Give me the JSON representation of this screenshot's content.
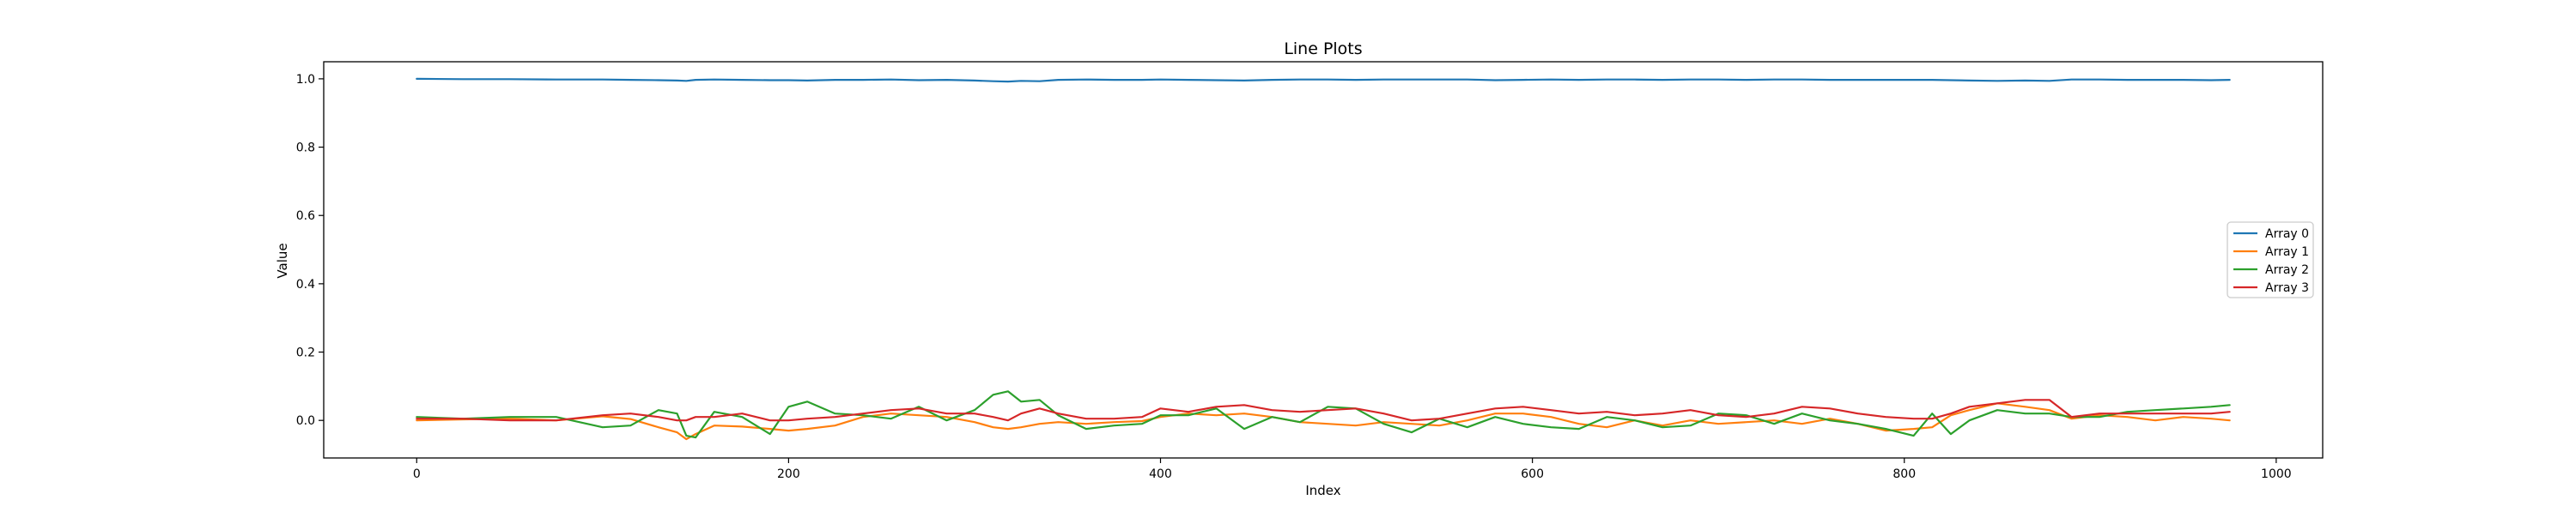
{
  "chart_data": {
    "type": "line",
    "title": "Line Plots",
    "xlabel": "Index",
    "ylabel": "Value",
    "xlim": [
      -50,
      1025
    ],
    "ylim": [
      -0.11,
      1.05
    ],
    "xticks": [
      0,
      200,
      400,
      600,
      800,
      1000
    ],
    "xtick_labels": [
      "0",
      "200",
      "400",
      "600",
      "800",
      "1000"
    ],
    "yticks": [
      0.0,
      0.2,
      0.4,
      0.6,
      0.8,
      1.0
    ],
    "ytick_labels": [
      "0.0",
      "0.2",
      "0.4",
      "0.6",
      "0.8",
      "1.0"
    ],
    "grid": false,
    "legend_position": "center-right",
    "x": [
      0,
      25,
      50,
      75,
      100,
      115,
      130,
      140,
      145,
      150,
      160,
      175,
      190,
      200,
      210,
      225,
      240,
      255,
      270,
      285,
      300,
      310,
      318,
      325,
      335,
      345,
      360,
      375,
      390,
      400,
      415,
      430,
      445,
      460,
      475,
      490,
      505,
      520,
      535,
      550,
      565,
      580,
      595,
      610,
      625,
      640,
      655,
      670,
      685,
      700,
      715,
      730,
      745,
      760,
      775,
      790,
      805,
      815,
      825,
      835,
      850,
      865,
      878,
      890,
      905,
      920,
      935,
      950,
      965,
      975
    ],
    "series": [
      {
        "name": "Array 0",
        "color": "#1f77b4",
        "values": [
          1.0,
          0.999,
          0.999,
          0.998,
          0.998,
          0.997,
          0.996,
          0.995,
          0.994,
          0.997,
          0.998,
          0.997,
          0.996,
          0.996,
          0.995,
          0.997,
          0.997,
          0.998,
          0.996,
          0.997,
          0.995,
          0.993,
          0.992,
          0.994,
          0.993,
          0.997,
          0.998,
          0.997,
          0.997,
          0.998,
          0.997,
          0.996,
          0.995,
          0.997,
          0.998,
          0.998,
          0.997,
          0.998,
          0.998,
          0.998,
          0.998,
          0.996,
          0.997,
          0.998,
          0.997,
          0.998,
          0.998,
          0.997,
          0.998,
          0.998,
          0.997,
          0.998,
          0.998,
          0.997,
          0.997,
          0.997,
          0.997,
          0.997,
          0.996,
          0.995,
          0.994,
          0.995,
          0.994,
          0.998,
          0.998,
          0.997,
          0.997,
          0.997,
          0.996,
          0.997
        ]
      },
      {
        "name": "Array 1",
        "color": "#ff7f0e",
        "values": [
          0.0,
          0.003,
          0.005,
          0.0,
          0.012,
          0.004,
          -0.02,
          -0.035,
          -0.055,
          -0.04,
          -0.015,
          -0.018,
          -0.025,
          -0.03,
          -0.025,
          -0.015,
          0.01,
          0.02,
          0.015,
          0.01,
          -0.005,
          -0.02,
          -0.025,
          -0.02,
          -0.01,
          -0.005,
          -0.01,
          -0.005,
          -0.002,
          0.01,
          0.02,
          0.015,
          0.02,
          0.01,
          -0.005,
          -0.01,
          -0.015,
          -0.005,
          -0.01,
          -0.015,
          0.0,
          0.02,
          0.02,
          0.01,
          -0.01,
          -0.02,
          0.0,
          -0.015,
          0.0,
          -0.01,
          -0.005,
          0.0,
          -0.01,
          0.005,
          -0.01,
          -0.03,
          -0.025,
          -0.02,
          0.015,
          0.03,
          0.05,
          0.04,
          0.03,
          0.005,
          0.015,
          0.01,
          0.0,
          0.01,
          0.005,
          0.0
        ]
      },
      {
        "name": "Array 2",
        "color": "#2ca02c",
        "values": [
          0.01,
          0.005,
          0.01,
          0.01,
          -0.02,
          -0.015,
          0.03,
          0.02,
          -0.045,
          -0.05,
          0.025,
          0.01,
          -0.04,
          0.04,
          0.055,
          0.02,
          0.015,
          0.005,
          0.04,
          0.0,
          0.03,
          0.075,
          0.085,
          0.055,
          0.06,
          0.015,
          -0.025,
          -0.015,
          -0.01,
          0.015,
          0.015,
          0.035,
          -0.025,
          0.01,
          -0.005,
          0.04,
          0.035,
          -0.01,
          -0.035,
          0.005,
          -0.02,
          0.01,
          -0.01,
          -0.02,
          -0.025,
          0.01,
          0.0,
          -0.02,
          -0.015,
          0.02,
          0.015,
          -0.01,
          0.02,
          0.0,
          -0.01,
          -0.025,
          -0.045,
          0.02,
          -0.04,
          0.0,
          0.03,
          0.02,
          0.02,
          0.01,
          0.01,
          0.025,
          0.03,
          0.035,
          0.04,
          0.045
        ]
      },
      {
        "name": "Array 3",
        "color": "#d62728",
        "values": [
          0.005,
          0.005,
          0.0,
          0.0,
          0.015,
          0.02,
          0.01,
          0.0,
          0.0,
          0.01,
          0.01,
          0.02,
          0.0,
          0.0,
          0.005,
          0.01,
          0.02,
          0.03,
          0.035,
          0.02,
          0.02,
          0.01,
          0.0,
          0.02,
          0.035,
          0.02,
          0.005,
          0.005,
          0.01,
          0.035,
          0.025,
          0.04,
          0.045,
          0.03,
          0.025,
          0.03,
          0.035,
          0.02,
          0.0,
          0.005,
          0.02,
          0.035,
          0.04,
          0.03,
          0.02,
          0.025,
          0.015,
          0.02,
          0.03,
          0.015,
          0.01,
          0.02,
          0.04,
          0.035,
          0.02,
          0.01,
          0.005,
          0.005,
          0.02,
          0.04,
          0.05,
          0.06,
          0.06,
          0.01,
          0.02,
          0.02,
          0.02,
          0.02,
          0.02,
          0.025
        ]
      }
    ]
  }
}
